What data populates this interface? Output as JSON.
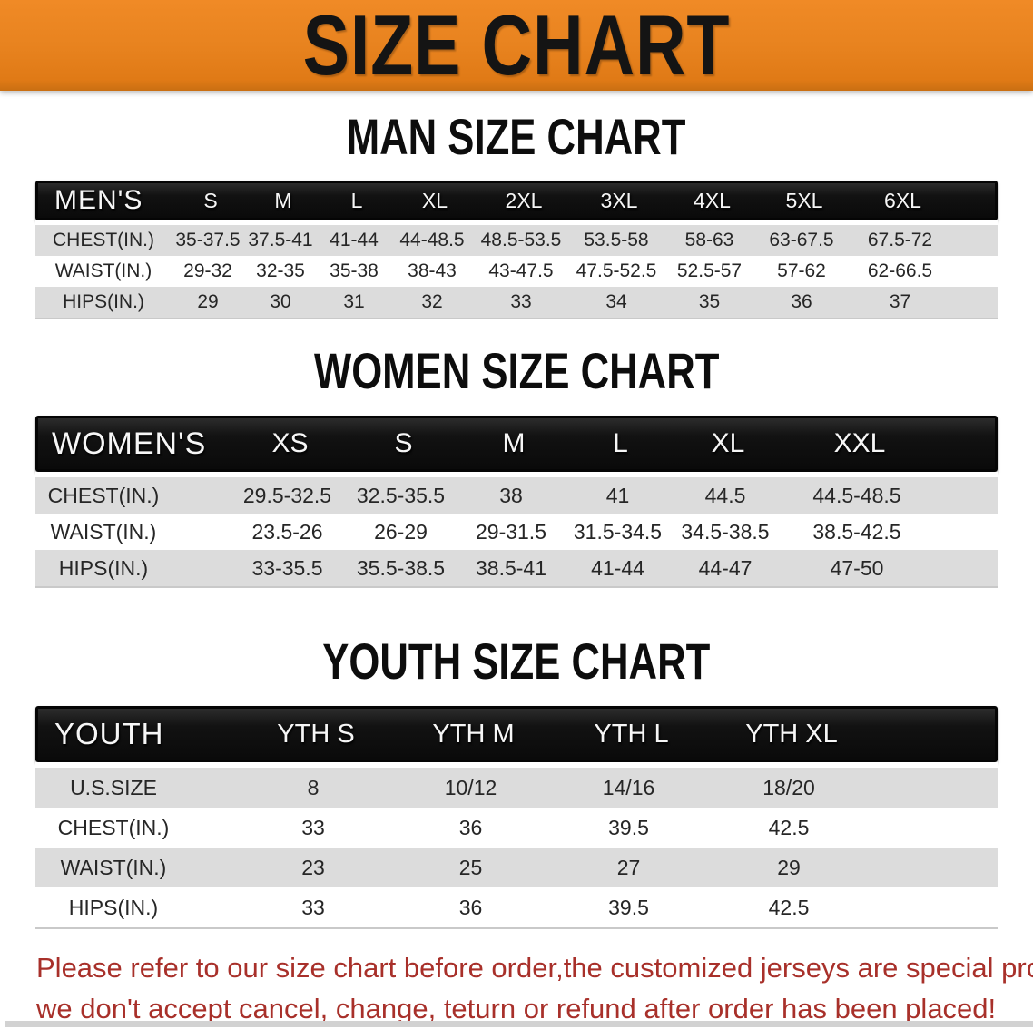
{
  "banner": {
    "title": "SIZE CHART"
  },
  "sections": [
    {
      "key": "men",
      "heading": "MAN SIZE CHART",
      "table": {
        "header_label": "MEN'S",
        "columns": [
          "S",
          "M",
          "L",
          "XL",
          "2XL",
          "3XL",
          "4XL",
          "5XL",
          "6XL"
        ],
        "rows": [
          {
            "label": "CHEST(IN.)",
            "values": [
              "35-37.5",
              "37.5-41",
              "41-44",
              "44-48.5",
              "48.5-53.5",
              "53.5-58",
              "58-63",
              "63-67.5",
              "67.5-72"
            ]
          },
          {
            "label": "WAIST(IN.)",
            "values": [
              "29-32",
              "32-35",
              "35-38",
              "38-43",
              "43-47.5",
              "47.5-52.5",
              "52.5-57",
              "57-62",
              "62-66.5"
            ]
          },
          {
            "label": "HIPS(IN.)",
            "values": [
              "29",
              "30",
              "31",
              "32",
              "33",
              "34",
              "35",
              "36",
              "37"
            ]
          }
        ]
      }
    },
    {
      "key": "women",
      "heading": "WOMEN SIZE CHART",
      "table": {
        "header_label": "WOMEN'S",
        "columns": [
          "XS",
          "S",
          "M",
          "L",
          "XL",
          "XXL"
        ],
        "rows": [
          {
            "label": "CHEST(IN.)",
            "values": [
              "29.5-32.5",
              "32.5-35.5",
              "38",
              "41",
              "44.5",
              "44.5-48.5"
            ]
          },
          {
            "label": "WAIST(IN.)",
            "values": [
              "23.5-26",
              "26-29",
              "29-31.5",
              "31.5-34.5",
              "34.5-38.5",
              "38.5-42.5"
            ]
          },
          {
            "label": "HIPS(IN.)",
            "values": [
              "33-35.5",
              "35.5-38.5",
              "38.5-41",
              "41-44",
              "44-47",
              "47-50"
            ]
          }
        ]
      }
    },
    {
      "key": "youth",
      "heading": "YOUTH SIZE CHART",
      "table": {
        "header_label": "YOUTH",
        "columns": [
          "YTH S",
          "YTH M",
          "YTH L",
          "YTH XL"
        ],
        "rows": [
          {
            "label": "U.S.SIZE",
            "values": [
              "8",
              "10/12",
              "14/16",
              "18/20"
            ]
          },
          {
            "label": "CHEST(IN.)",
            "values": [
              "33",
              "36",
              "39.5",
              "42.5"
            ]
          },
          {
            "label": "WAIST(IN.)",
            "values": [
              "23",
              "25",
              "27",
              "29"
            ]
          },
          {
            "label": "HIPS(IN.)",
            "values": [
              "33",
              "36",
              "39.5",
              "42.5"
            ]
          }
        ]
      }
    }
  ],
  "disclaimer": {
    "line1": "Please refer to our size chart before order,the customized jerseys are special products,",
    "line2": "we don't accept cancel, change, teturn or refund after order has been placed!"
  },
  "colors": {
    "banner_orange": "#e8831f",
    "header_bar_black": "#121212",
    "row_gray": "#dcdcdc",
    "disclaimer_red": "#a8302a"
  }
}
